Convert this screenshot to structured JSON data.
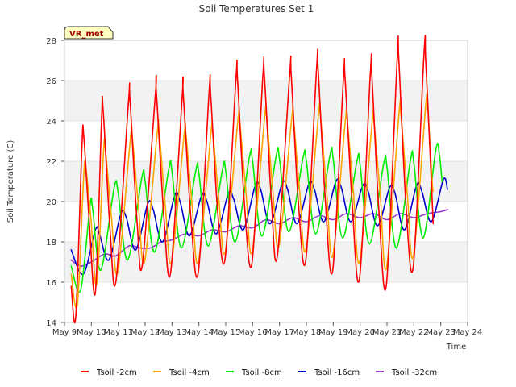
{
  "chart_data": {
    "type": "line",
    "title": "Soil Temperatures Set 1",
    "xlabel": "Time",
    "ylabel": "Soil Temperature (C)",
    "station_badge": "VR_met",
    "xlim": [
      "May 9",
      "May 24"
    ],
    "ylim": [
      14,
      28
    ],
    "x_ticks": [
      "May 9",
      "May 10",
      "May 11",
      "May 12",
      "May 13",
      "May 14",
      "May 15",
      "May 16",
      "May 17",
      "May 18",
      "May 19",
      "May 20",
      "May 21",
      "May 22",
      "May 23",
      "May 24"
    ],
    "y_ticks": [
      "14",
      "16",
      "18",
      "20",
      "22",
      "24",
      "26",
      "28"
    ],
    "grid": "horizontal bands",
    "legend_position": "bottom",
    "x_unit": "days since May 9 00:00",
    "series": [
      {
        "name": "Tsoil -2cm",
        "color": "#ff0000",
        "points": [
          [
            0.25,
            15.8
          ],
          [
            0.42,
            14.3
          ],
          [
            0.65,
            22.8
          ],
          [
            0.72,
            23.2
          ],
          [
            0.92,
            19.0
          ],
          [
            1.15,
            15.5
          ],
          [
            1.38,
            24.1
          ],
          [
            1.44,
            24.5
          ],
          [
            1.7,
            18.5
          ],
          [
            1.92,
            16.1
          ],
          [
            2.38,
            24.9
          ],
          [
            2.44,
            25.0
          ],
          [
            2.7,
            19.0
          ],
          [
            2.9,
            16.9
          ],
          [
            3.38,
            25.3
          ],
          [
            3.42,
            25.4
          ],
          [
            3.7,
            19.2
          ],
          [
            3.95,
            16.5
          ],
          [
            4.38,
            25.2
          ],
          [
            4.42,
            25.3
          ],
          [
            4.7,
            19.2
          ],
          [
            4.98,
            16.5
          ],
          [
            5.38,
            25.4
          ],
          [
            5.44,
            25.3
          ],
          [
            5.7,
            19.5
          ],
          [
            5.98,
            17.2
          ],
          [
            6.38,
            26.1
          ],
          [
            6.44,
            26.0
          ],
          [
            6.7,
            19.8
          ],
          [
            6.98,
            17.0
          ],
          [
            7.38,
            26.2
          ],
          [
            7.44,
            26.2
          ],
          [
            7.7,
            20.0
          ],
          [
            7.92,
            17.3
          ],
          [
            8.38,
            26.3
          ],
          [
            8.44,
            26.2
          ],
          [
            8.7,
            20.0
          ],
          [
            8.98,
            17.1
          ],
          [
            9.38,
            26.6
          ],
          [
            9.44,
            26.5
          ],
          [
            9.7,
            20.2
          ],
          [
            9.98,
            16.6
          ],
          [
            10.38,
            26.1
          ],
          [
            10.44,
            26.1
          ],
          [
            10.7,
            20.0
          ],
          [
            10.98,
            16.2
          ],
          [
            11.38,
            26.3
          ],
          [
            11.44,
            26.2
          ],
          [
            11.7,
            19.5
          ],
          [
            11.98,
            15.9
          ],
          [
            12.38,
            27.1
          ],
          [
            12.44,
            27.0
          ],
          [
            12.7,
            20.0
          ],
          [
            12.98,
            16.8
          ],
          [
            13.38,
            27.4
          ],
          [
            13.44,
            27.0
          ],
          [
            13.6,
            22.5
          ],
          [
            13.72,
            18.9
          ]
        ]
      },
      {
        "name": "Tsoil -4cm",
        "color": "#ffa500",
        "points": [
          [
            0.25,
            16.4
          ],
          [
            0.48,
            14.9
          ],
          [
            0.72,
            21.4
          ],
          [
            0.8,
            21.6
          ],
          [
            0.98,
            19.2
          ],
          [
            1.2,
            15.9
          ],
          [
            1.45,
            22.4
          ],
          [
            1.52,
            22.6
          ],
          [
            1.75,
            19.2
          ],
          [
            1.98,
            16.5
          ],
          [
            2.45,
            23.1
          ],
          [
            2.52,
            23.2
          ],
          [
            2.75,
            19.8
          ],
          [
            2.98,
            17.0
          ],
          [
            3.45,
            23.4
          ],
          [
            3.52,
            23.5
          ],
          [
            3.75,
            19.8
          ],
          [
            3.98,
            17.0
          ],
          [
            4.45,
            23.3
          ],
          [
            4.52,
            23.3
          ],
          [
            4.75,
            19.8
          ],
          [
            4.98,
            17.0
          ],
          [
            5.45,
            23.4
          ],
          [
            5.52,
            23.4
          ],
          [
            5.75,
            20.0
          ],
          [
            5.98,
            17.5
          ],
          [
            6.45,
            24.0
          ],
          [
            6.52,
            24.0
          ],
          [
            6.75,
            20.5
          ],
          [
            6.98,
            17.5
          ],
          [
            7.45,
            24.2
          ],
          [
            7.52,
            24.2
          ],
          [
            7.75,
            20.6
          ],
          [
            7.98,
            17.8
          ],
          [
            8.45,
            24.1
          ],
          [
            8.52,
            24.1
          ],
          [
            8.75,
            20.5
          ],
          [
            8.98,
            17.6
          ],
          [
            9.45,
            24.3
          ],
          [
            9.52,
            24.3
          ],
          [
            9.75,
            20.6
          ],
          [
            9.98,
            17.3
          ],
          [
            10.45,
            24.0
          ],
          [
            10.52,
            24.0
          ],
          [
            10.75,
            20.5
          ],
          [
            10.98,
            17.0
          ],
          [
            11.45,
            24.0
          ],
          [
            11.52,
            23.9
          ],
          [
            11.75,
            20.3
          ],
          [
            11.98,
            16.7
          ],
          [
            12.45,
            24.4
          ],
          [
            12.52,
            24.3
          ],
          [
            12.75,
            20.5
          ],
          [
            12.98,
            17.3
          ],
          [
            13.45,
            24.9
          ],
          [
            13.52,
            24.6
          ],
          [
            13.68,
            21.0
          ],
          [
            13.72,
            20.5
          ]
        ]
      },
      {
        "name": "Tsoil -8cm",
        "color": "#00ee00",
        "points": [
          [
            0.25,
            16.8
          ],
          [
            0.6,
            15.6
          ],
          [
            0.95,
            19.8
          ],
          [
            1.05,
            19.6
          ],
          [
            1.35,
            16.6
          ],
          [
            1.85,
            20.7
          ],
          [
            2.0,
            20.4
          ],
          [
            2.35,
            17.1
          ],
          [
            2.88,
            21.2
          ],
          [
            3.0,
            21.0
          ],
          [
            3.35,
            17.5
          ],
          [
            3.88,
            21.6
          ],
          [
            4.0,
            21.5
          ],
          [
            4.35,
            17.7
          ],
          [
            4.88,
            21.5
          ],
          [
            5.0,
            21.4
          ],
          [
            5.35,
            17.8
          ],
          [
            5.88,
            21.6
          ],
          [
            6.0,
            21.5
          ],
          [
            6.35,
            18.0
          ],
          [
            6.88,
            22.2
          ],
          [
            7.0,
            22.0
          ],
          [
            7.35,
            18.3
          ],
          [
            7.88,
            22.3
          ],
          [
            8.0,
            22.1
          ],
          [
            8.35,
            18.5
          ],
          [
            8.88,
            22.2
          ],
          [
            9.0,
            22.0
          ],
          [
            9.35,
            18.4
          ],
          [
            9.88,
            22.3
          ],
          [
            10.0,
            22.1
          ],
          [
            10.35,
            18.2
          ],
          [
            10.88,
            22.0
          ],
          [
            11.0,
            21.8
          ],
          [
            11.35,
            17.9
          ],
          [
            11.88,
            21.9
          ],
          [
            12.0,
            21.7
          ],
          [
            12.35,
            17.7
          ],
          [
            12.88,
            22.1
          ],
          [
            13.0,
            21.9
          ],
          [
            13.35,
            18.2
          ],
          [
            13.82,
            22.6
          ],
          [
            13.95,
            22.3
          ],
          [
            14.05,
            21.0
          ]
        ]
      },
      {
        "name": "Tsoil -16cm",
        "color": "#0000cc",
        "points": [
          [
            0.25,
            17.6
          ],
          [
            0.7,
            16.4
          ],
          [
            1.15,
            18.6
          ],
          [
            1.3,
            18.4
          ],
          [
            1.65,
            17.1
          ],
          [
            2.1,
            19.4
          ],
          [
            2.3,
            19.2
          ],
          [
            2.65,
            17.6
          ],
          [
            3.1,
            19.9
          ],
          [
            3.3,
            19.6
          ],
          [
            3.65,
            18.0
          ],
          [
            4.1,
            20.3
          ],
          [
            4.3,
            20.0
          ],
          [
            4.65,
            18.3
          ],
          [
            5.1,
            20.3
          ],
          [
            5.3,
            20.0
          ],
          [
            5.65,
            18.4
          ],
          [
            6.1,
            20.4
          ],
          [
            6.3,
            20.1
          ],
          [
            6.65,
            18.6
          ],
          [
            7.1,
            20.8
          ],
          [
            7.3,
            20.6
          ],
          [
            7.65,
            18.9
          ],
          [
            8.1,
            20.9
          ],
          [
            8.3,
            20.6
          ],
          [
            8.65,
            18.9
          ],
          [
            9.1,
            20.9
          ],
          [
            9.3,
            20.6
          ],
          [
            9.65,
            19.0
          ],
          [
            10.1,
            21.0
          ],
          [
            10.3,
            20.7
          ],
          [
            10.65,
            19.0
          ],
          [
            11.1,
            20.8
          ],
          [
            11.3,
            20.5
          ],
          [
            11.65,
            18.8
          ],
          [
            12.1,
            20.7
          ],
          [
            12.3,
            20.4
          ],
          [
            12.65,
            18.6
          ],
          [
            13.1,
            20.8
          ],
          [
            13.3,
            20.5
          ],
          [
            13.65,
            19.0
          ],
          [
            14.1,
            21.1
          ],
          [
            14.25,
            20.6
          ]
        ]
      },
      {
        "name": "Tsoil -32cm",
        "color": "#9933cc",
        "points": [
          [
            0.25,
            17.1
          ],
          [
            0.6,
            16.8
          ],
          [
            1.0,
            17.0
          ],
          [
            1.5,
            17.4
          ],
          [
            1.9,
            17.3
          ],
          [
            2.4,
            17.8
          ],
          [
            2.8,
            17.7
          ],
          [
            3.2,
            17.7
          ],
          [
            3.6,
            18.0
          ],
          [
            4.0,
            18.1
          ],
          [
            4.5,
            18.4
          ],
          [
            5.0,
            18.3
          ],
          [
            5.5,
            18.6
          ],
          [
            6.0,
            18.5
          ],
          [
            6.5,
            18.8
          ],
          [
            7.0,
            18.7
          ],
          [
            7.5,
            19.1
          ],
          [
            8.0,
            18.9
          ],
          [
            8.5,
            19.2
          ],
          [
            9.0,
            19.0
          ],
          [
            9.5,
            19.3
          ],
          [
            10.0,
            19.1
          ],
          [
            10.5,
            19.4
          ],
          [
            11.0,
            19.2
          ],
          [
            11.5,
            19.4
          ],
          [
            12.0,
            19.1
          ],
          [
            12.5,
            19.4
          ],
          [
            13.0,
            19.2
          ],
          [
            13.5,
            19.4
          ],
          [
            14.0,
            19.5
          ],
          [
            14.25,
            19.6
          ]
        ]
      }
    ]
  }
}
